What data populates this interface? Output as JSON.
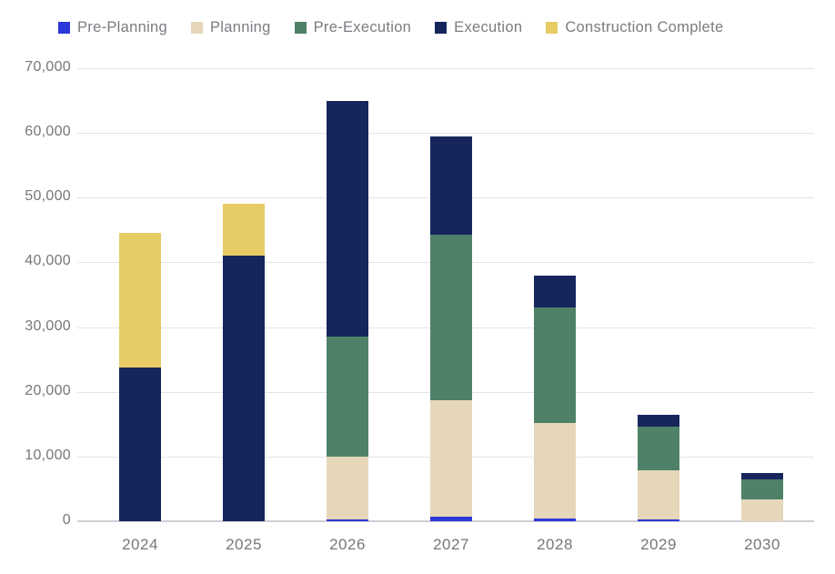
{
  "chart_data": {
    "type": "bar",
    "stacked": true,
    "title": "",
    "xlabel": "",
    "ylabel": "",
    "categories": [
      "2024",
      "2025",
      "2026",
      "2027",
      "2028",
      "2029",
      "2030"
    ],
    "series": [
      {
        "name": "Pre-Planning",
        "color": "#2c38d9",
        "values": [
          0,
          0,
          250,
          700,
          400,
          300,
          0
        ]
      },
      {
        "name": "Planning",
        "color": "#e6d7ba",
        "values": [
          0,
          0,
          9750,
          18000,
          14800,
          7600,
          3400
        ]
      },
      {
        "name": "Pre-Execution",
        "color": "#4f8169",
        "values": [
          0,
          0,
          18500,
          25600,
          17800,
          6700,
          3100
        ]
      },
      {
        "name": "Execution",
        "color": "#16265c",
        "values": [
          23800,
          41000,
          36500,
          15200,
          5000,
          1900,
          1000
        ]
      },
      {
        "name": "Construction Complete",
        "color": "#e7cb64",
        "values": [
          20700,
          8000,
          0,
          0,
          0,
          0,
          0
        ]
      }
    ],
    "totals": [
      44500,
      49000,
      65000,
      59500,
      38000,
      16500,
      7500
    ],
    "ylim": [
      0,
      70000
    ],
    "yticks": [
      {
        "value": 0,
        "label": "0"
      },
      {
        "value": 10000,
        "label": "10,000"
      },
      {
        "value": 20000,
        "label": "20,000"
      },
      {
        "value": 30000,
        "label": "30,000"
      },
      {
        "value": 40000,
        "label": "40,000"
      },
      {
        "value": 50000,
        "label": "50,000"
      },
      {
        "value": 60000,
        "label": "60,000"
      },
      {
        "value": 70000,
        "label": "70,000"
      }
    ],
    "grid": true,
    "legend_position": "top"
  },
  "colors": {
    "background": "#ffffff",
    "gridline": "#e4e4e7",
    "zero_line": "#cfcfd4",
    "tick_text": "#76767c",
    "legend_text": "#7b7b81"
  }
}
